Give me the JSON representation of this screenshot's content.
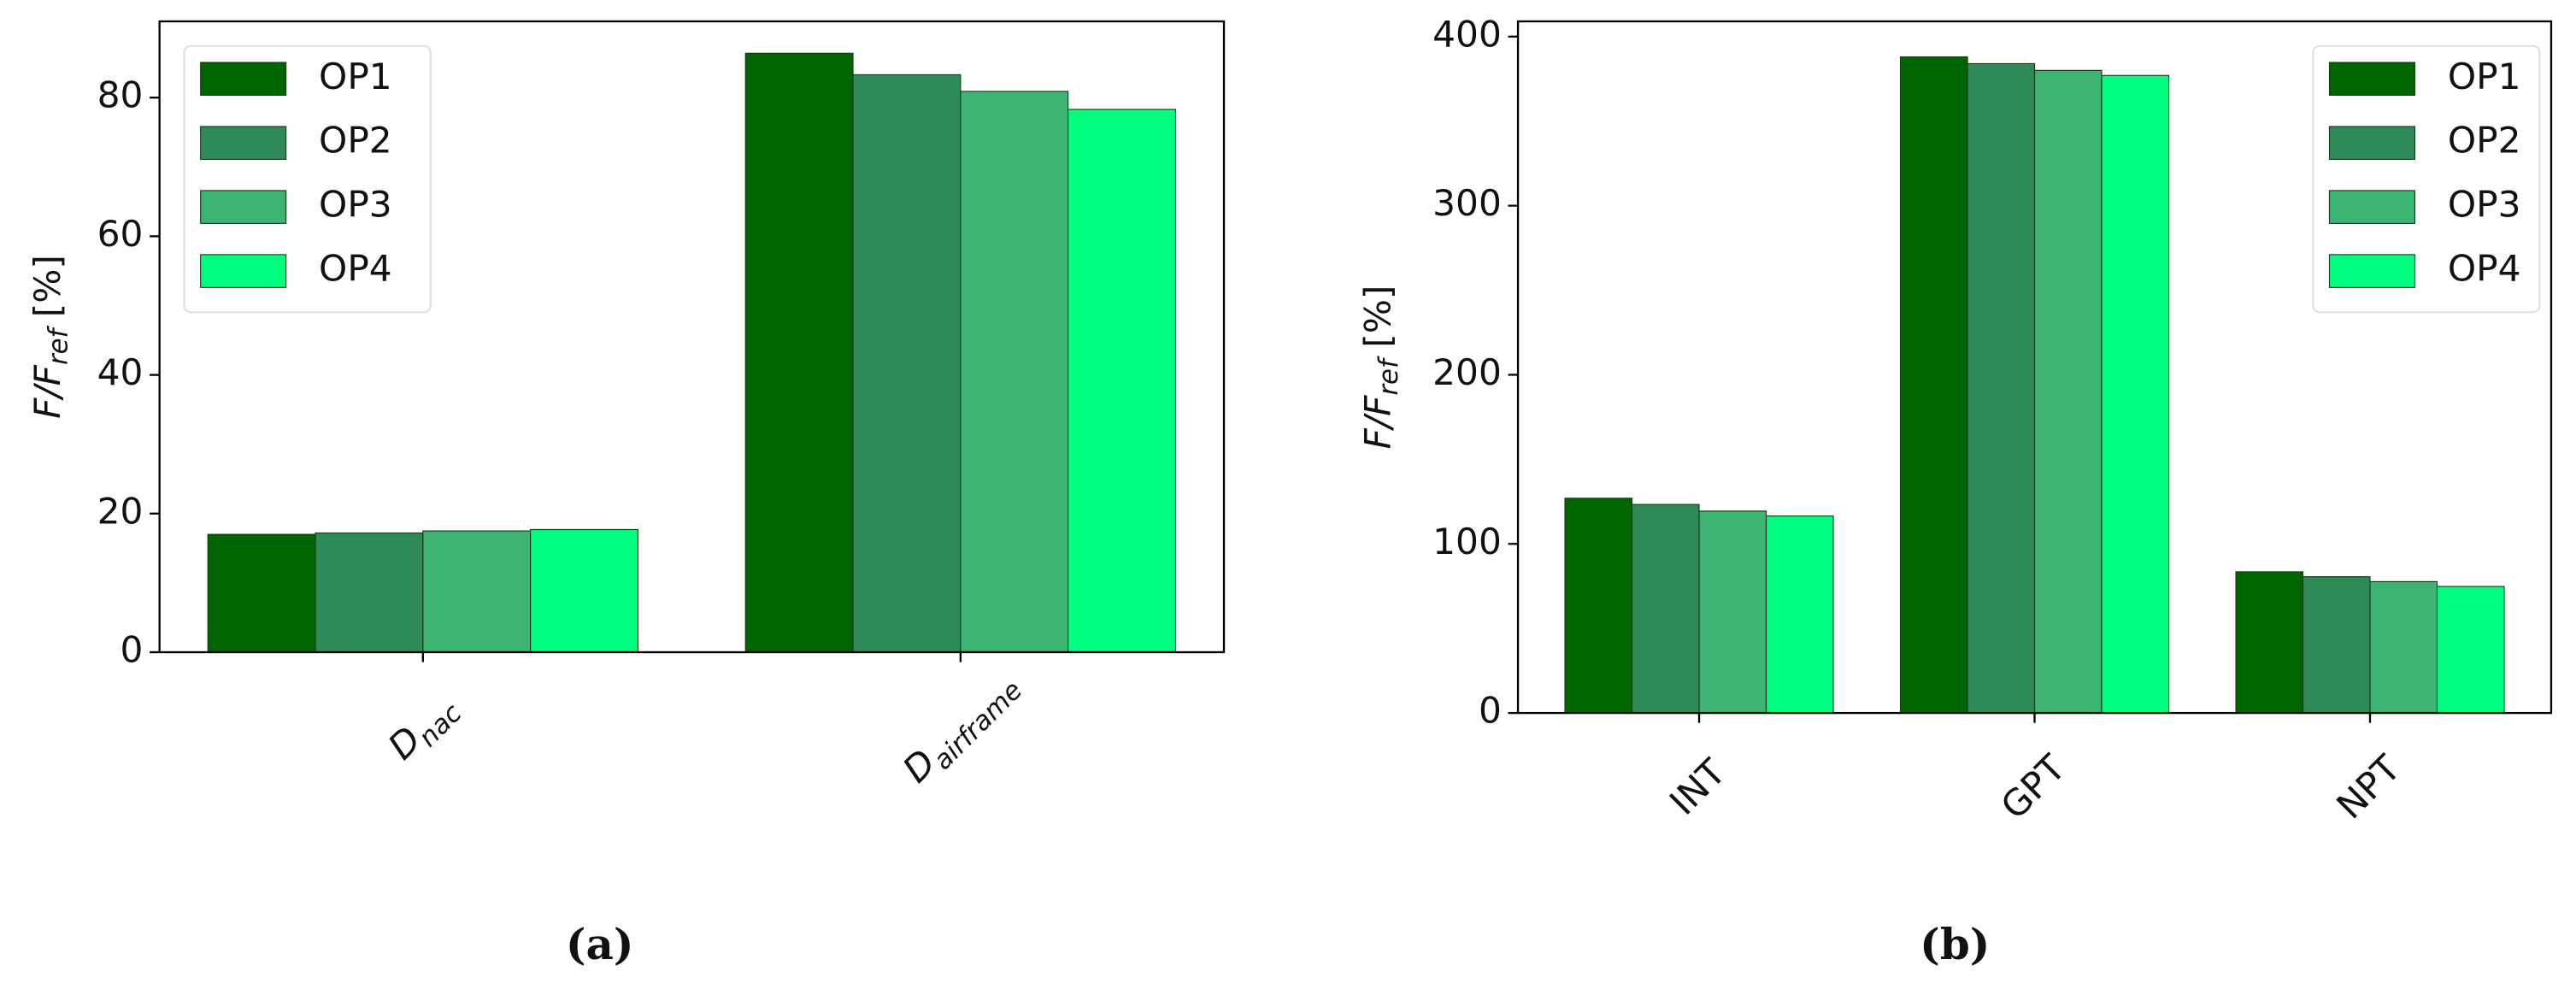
{
  "chart_data": [
    {
      "type": "bar",
      "label": "(a)",
      "y_label": [
        "F/F",
        "ref",
        " [%]"
      ],
      "categories": [
        [
          "D",
          "nac"
        ],
        [
          "D",
          "airframe"
        ]
      ],
      "series": [
        {
          "name": "OP1",
          "color": "#006400",
          "values": [
            17.0,
            86.4
          ]
        },
        {
          "name": "OP2",
          "color": "#2e8b57",
          "values": [
            17.2,
            83.3
          ]
        },
        {
          "name": "OP3",
          "color": "#3cb371",
          "values": [
            17.5,
            80.9
          ]
        },
        {
          "name": "OP4",
          "color": "#00ff7f",
          "values": [
            17.7,
            78.3
          ]
        }
      ],
      "ylim": [
        0,
        91
      ],
      "yticks": [
        0,
        20,
        40,
        60,
        80
      ],
      "legend": "upper left"
    },
    {
      "type": "bar",
      "label": "(b)",
      "y_label": [
        "F/F",
        "ref",
        " [%]"
      ],
      "categories": [
        [
          "INT"
        ],
        [
          "GPT"
        ],
        [
          "NPT"
        ]
      ],
      "series": [
        {
          "name": "OP1",
          "color": "#006400",
          "values": [
            127,
            388,
            83.5
          ]
        },
        {
          "name": "OP2",
          "color": "#2e8b57",
          "values": [
            123.3,
            384,
            80.6
          ]
        },
        {
          "name": "OP3",
          "color": "#3cb371",
          "values": [
            119.4,
            380,
            77.7
          ]
        },
        {
          "name": "OP4",
          "color": "#00ff7f",
          "values": [
            116.5,
            377,
            74.8
          ]
        }
      ],
      "ylim": [
        0,
        409
      ],
      "yticks": [
        0,
        100,
        200,
        300,
        400
      ],
      "legend": "upper right"
    }
  ]
}
